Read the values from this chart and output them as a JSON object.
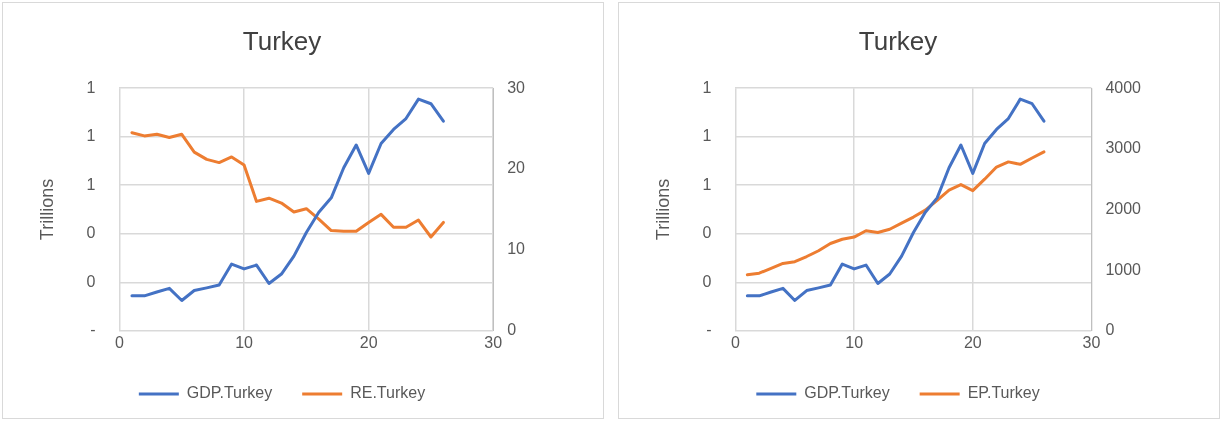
{
  "chart_data": [
    {
      "type": "line",
      "title": "Turkey",
      "ylabel": "Trillions",
      "x": [
        1,
        2,
        3,
        4,
        5,
        6,
        7,
        8,
        9,
        10,
        11,
        12,
        13,
        14,
        15,
        16,
        17,
        18,
        19,
        20,
        21,
        22,
        23,
        24,
        25,
        26
      ],
      "series": [
        {
          "name": "GDP.Turkey",
          "color": "#4472c4",
          "values": [
            0.144,
            0.144,
            0.16,
            0.175,
            0.125,
            0.166,
            0.177,
            0.189,
            0.275,
            0.255,
            0.271,
            0.195,
            0.234,
            0.308,
            0.405,
            0.489,
            0.548,
            0.672,
            0.766,
            0.649,
            0.772,
            0.83,
            0.875,
            0.955,
            0.936,
            0.864
          ]
        },
        {
          "name": "RE.Turkey",
          "color": "#ed7d31",
          "axis": "y2",
          "values": [
            24.5,
            24.1,
            24.3,
            23.9,
            24.3,
            22.1,
            21.2,
            20.8,
            21.5,
            20.5,
            16.0,
            16.4,
            15.8,
            14.7,
            15.1,
            13.8,
            12.4,
            12.3,
            12.3,
            13.4,
            14.4,
            12.8,
            12.8,
            13.7,
            11.6,
            13.4
          ]
        }
      ],
      "xlim": [
        0,
        30
      ],
      "xticks": [
        0,
        10,
        20,
        30
      ],
      "ylim": [
        0,
        1
      ],
      "yticks": [
        {
          "value": 0,
          "label": "-"
        },
        {
          "value": 0.2,
          "label": "0"
        },
        {
          "value": 0.4,
          "label": "0"
        },
        {
          "value": 0.6,
          "label": "1"
        },
        {
          "value": 0.8,
          "label": "1"
        },
        {
          "value": 1,
          "label": "1"
        }
      ],
      "y2lim": [
        0,
        30
      ],
      "y2ticks": [
        0,
        10,
        20,
        30
      ],
      "grid": true,
      "legend": "bottom",
      "marker": "none",
      "line_style": "solid"
    },
    {
      "type": "line",
      "title": "Turkey",
      "ylabel": "Trillions",
      "x": [
        1,
        2,
        3,
        4,
        5,
        6,
        7,
        8,
        9,
        10,
        11,
        12,
        13,
        14,
        15,
        16,
        17,
        18,
        19,
        20,
        21,
        22,
        23,
        24,
        25,
        26
      ],
      "series": [
        {
          "name": "GDP.Turkey",
          "color": "#4472c4",
          "values": [
            0.144,
            0.144,
            0.16,
            0.175,
            0.125,
            0.166,
            0.177,
            0.189,
            0.275,
            0.255,
            0.271,
            0.195,
            0.234,
            0.308,
            0.405,
            0.489,
            0.548,
            0.672,
            0.766,
            0.649,
            0.772,
            0.83,
            0.875,
            0.955,
            0.936,
            0.864
          ]
        },
        {
          "name": "EP.Turkey",
          "color": "#ed7d31",
          "axis": "y2",
          "values": [
            925,
            950,
            1030,
            1110,
            1140,
            1225,
            1320,
            1440,
            1510,
            1545,
            1650,
            1620,
            1675,
            1775,
            1875,
            1990,
            2150,
            2320,
            2410,
            2310,
            2500,
            2700,
            2785,
            2745,
            2850,
            2950
          ]
        }
      ],
      "xlim": [
        0,
        30
      ],
      "xticks": [
        0,
        10,
        20,
        30
      ],
      "ylim": [
        0,
        1
      ],
      "yticks": [
        {
          "value": 0,
          "label": "-"
        },
        {
          "value": 0.2,
          "label": "0"
        },
        {
          "value": 0.4,
          "label": "0"
        },
        {
          "value": 0.6,
          "label": "1"
        },
        {
          "value": 0.8,
          "label": "1"
        },
        {
          "value": 1,
          "label": "1"
        }
      ],
      "y2lim": [
        0,
        4000
      ],
      "y2ticks": [
        0,
        1000,
        2000,
        3000,
        4000
      ],
      "grid": true,
      "legend": "bottom",
      "marker": "none",
      "line_style": "solid"
    }
  ]
}
